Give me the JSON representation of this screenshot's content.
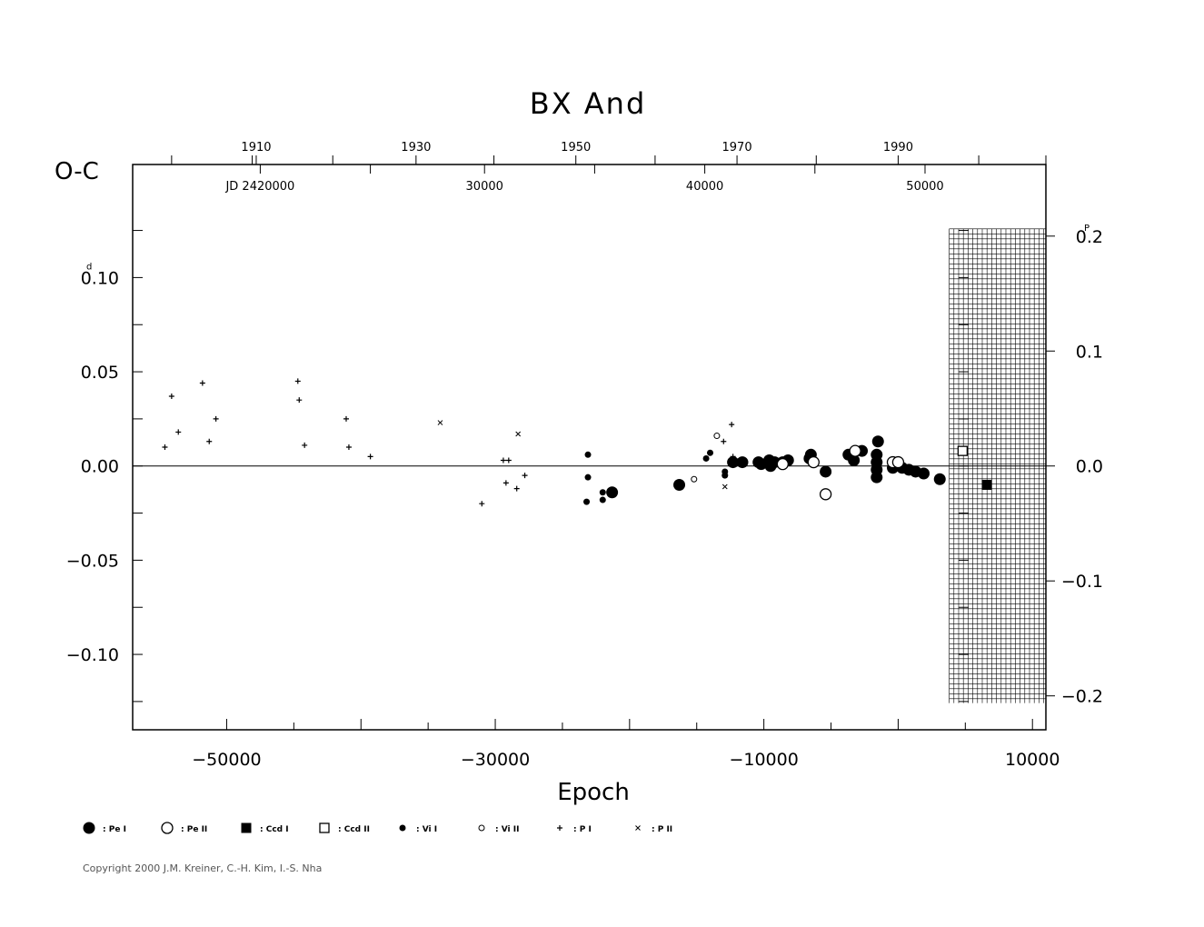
{
  "chart_data": {
    "type": "scatter",
    "title": "BX  And",
    "ylabel": "O-C",
    "xlabel": "Epoch",
    "xlim": [
      -57000,
      11000
    ],
    "ylim": [
      -0.14,
      0.16
    ],
    "grid": false,
    "y_ticks_left": [
      "0.10",
      "0.05",
      "0.00",
      "−0.05",
      "−0.10"
    ],
    "y_tick_values_left": [
      0.1,
      0.05,
      0.0,
      -0.05,
      -0.1
    ],
    "y_unit_superscript_left": "d",
    "y_ticks_right": [
      "0.2",
      "0.1",
      "0.0",
      "−0.1",
      "−0.2"
    ],
    "y_tick_values_right": [
      0.2,
      0.1,
      0.0,
      -0.1,
      -0.2
    ],
    "y_unit_superscript_right": "P",
    "period_days": 0.61,
    "x_ticks": [
      "−50000",
      "−30000",
      "−10000",
      "10000"
    ],
    "x_tick_values": [
      -50000,
      -30000,
      -10000,
      10000
    ],
    "top_year_labels": [
      "1910",
      "1930",
      "1950",
      "1970",
      "1990"
    ],
    "top_year_epochs": [
      -47800,
      -35900,
      -24000,
      -12000,
      0
    ],
    "top_jd_labels": [
      "JD  2420000",
      "30000",
      "40000",
      "50000"
    ],
    "top_jd_epochs": [
      -47500,
      -30800,
      -14400,
      2000
    ],
    "top_year_tick_epochs": [
      -54100,
      -48100,
      -47800,
      -42100,
      -35900,
      -30100,
      -24000,
      -18100,
      -12000,
      -6100,
      0,
      6000,
      11000
    ],
    "top_jd_tick_epochs": [
      -47500,
      -39300,
      -30800,
      -22600,
      -14400,
      -6200,
      2000
    ],
    "series": [
      {
        "name": "Pe I",
        "marker": "big-filled",
        "points": [
          [
            -21300,
            -0.014
          ],
          [
            -16300,
            -0.01
          ],
          [
            -12300,
            0.002
          ],
          [
            -11600,
            0.002
          ],
          [
            -10400,
            0.002
          ],
          [
            -10200,
            0.001
          ],
          [
            -9600,
            0.003
          ],
          [
            -9500,
            0.0
          ],
          [
            -9200,
            0.002
          ],
          [
            -8600,
            0.002
          ],
          [
            -8200,
            0.003
          ],
          [
            -6600,
            0.004
          ],
          [
            -6500,
            0.006
          ],
          [
            -5400,
            -0.003
          ],
          [
            -3700,
            0.006
          ],
          [
            -3300,
            0.003
          ],
          [
            -2700,
            0.008
          ],
          [
            -1500,
            0.013
          ],
          [
            -1600,
            0.006
          ],
          [
            -1600,
            0.002
          ],
          [
            -1600,
            -0.002
          ],
          [
            -1600,
            -0.006
          ],
          [
            -400,
            -0.001
          ],
          [
            300,
            -0.001
          ],
          [
            800,
            -0.002
          ],
          [
            1300,
            -0.003
          ],
          [
            1900,
            -0.004
          ],
          [
            3100,
            -0.007
          ]
        ]
      },
      {
        "name": "Pe II",
        "marker": "big-open",
        "points": [
          [
            -8600,
            0.001
          ],
          [
            -6300,
            0.002
          ],
          [
            -5400,
            -0.015
          ],
          [
            -3200,
            0.008
          ],
          [
            -400,
            0.002
          ],
          [
            0,
            0.002
          ]
        ]
      },
      {
        "name": "Ccd I",
        "marker": "filled-square",
        "points": [
          [
            6600,
            -0.01
          ]
        ]
      },
      {
        "name": "Ccd II",
        "marker": "open-square",
        "points": [
          [
            4800,
            0.008
          ]
        ]
      },
      {
        "name": "Vi I",
        "marker": "small-filled",
        "points": [
          [
            -23100,
            0.006
          ],
          [
            -23100,
            -0.006
          ],
          [
            -23200,
            -0.019
          ],
          [
            -22000,
            -0.018
          ],
          [
            -22000,
            -0.014
          ],
          [
            -14300,
            0.004
          ],
          [
            -14000,
            0.007
          ],
          [
            -12900,
            -0.003
          ],
          [
            -12900,
            -0.005
          ]
        ]
      },
      {
        "name": "Vi II",
        "marker": "small-open",
        "points": [
          [
            -15200,
            -0.007
          ],
          [
            -13500,
            0.016
          ]
        ]
      },
      {
        "name": "P I",
        "marker": "plus",
        "points": [
          [
            -54600,
            0.01
          ],
          [
            -54100,
            0.037
          ],
          [
            -53600,
            0.018
          ],
          [
            -51800,
            0.044
          ],
          [
            -51300,
            0.013
          ],
          [
            -50800,
            0.025
          ],
          [
            -44700,
            0.045
          ],
          [
            -44600,
            0.035
          ],
          [
            -44200,
            0.011
          ],
          [
            -41100,
            0.025
          ],
          [
            -40900,
            0.01
          ],
          [
            -39300,
            0.005
          ],
          [
            -31000,
            -0.02
          ],
          [
            -29400,
            0.003
          ],
          [
            -29200,
            -0.009
          ],
          [
            -29000,
            0.003
          ],
          [
            -28400,
            -0.012
          ],
          [
            -27800,
            -0.005
          ],
          [
            -13000,
            0.013
          ],
          [
            -12400,
            0.022
          ],
          [
            -12300,
            0.005
          ]
        ]
      },
      {
        "name": "P II",
        "marker": "cross",
        "points": [
          [
            -34100,
            0.023
          ],
          [
            -28300,
            0.017
          ],
          [
            -12900,
            -0.011
          ],
          [
            -12300,
            0.003
          ]
        ]
      }
    ],
    "legend": [
      {
        "marker": "big-filled",
        "label": ": Pe  I"
      },
      {
        "marker": "big-open",
        "label": ": Pe  II"
      },
      {
        "marker": "filled-square",
        "label": ": Ccd  I"
      },
      {
        "marker": "open-square",
        "label": ": Ccd  II"
      },
      {
        "marker": "small-filled",
        "label": ": Vi  I"
      },
      {
        "marker": "small-open",
        "label": ": Vi  II"
      },
      {
        "marker": "plus",
        "label": ": P  I"
      },
      {
        "marker": "cross",
        "label": ": P  II"
      }
    ]
  },
  "copyright": "Copyright 2000 J.M. Kreiner, C.-H. Kim, I.-S. Nha"
}
